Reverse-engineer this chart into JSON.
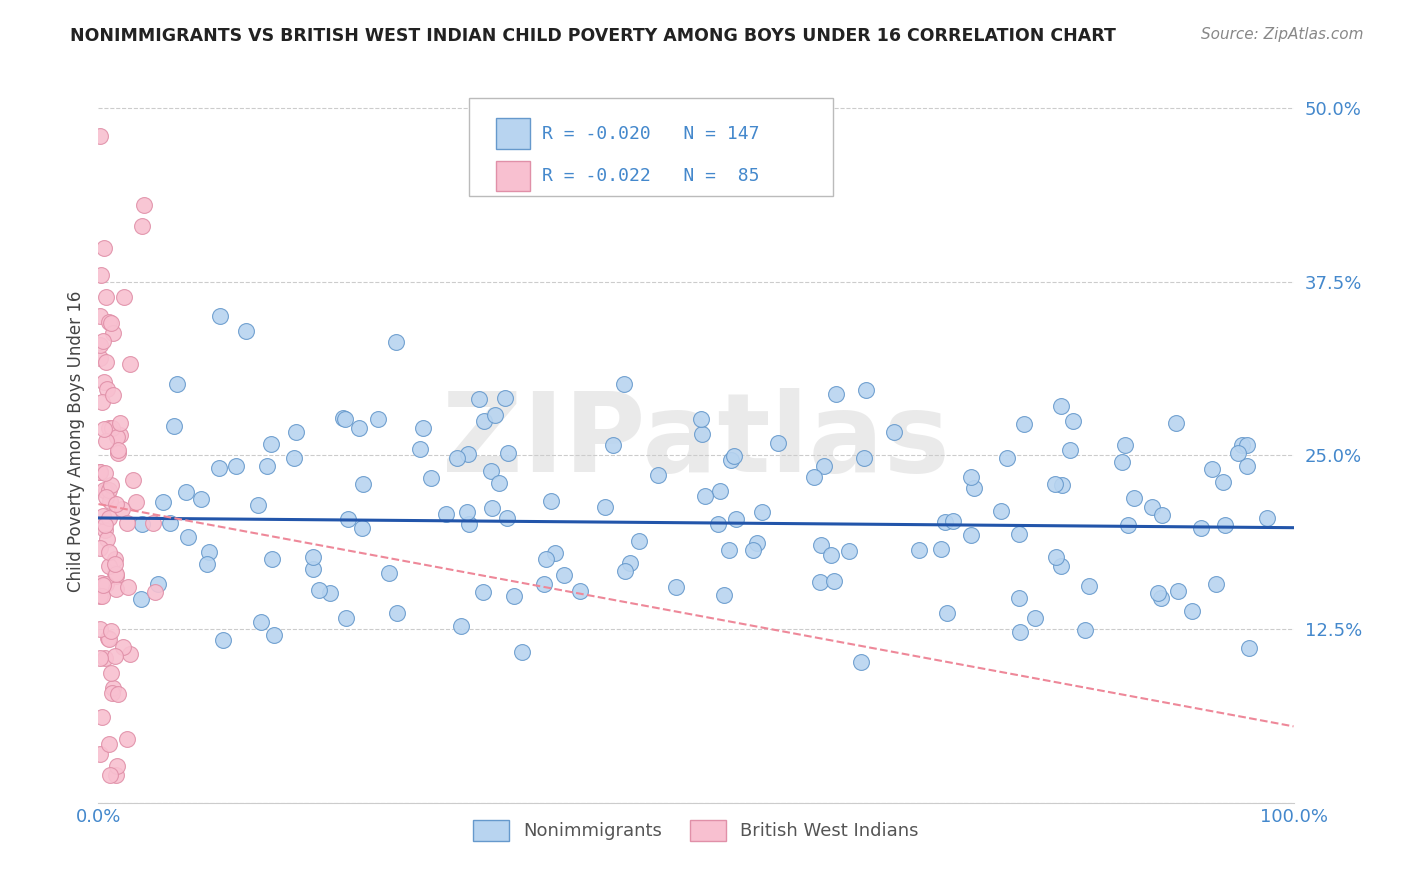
{
  "title": "NONIMMIGRANTS VS BRITISH WEST INDIAN CHILD POVERTY AMONG BOYS UNDER 16 CORRELATION CHART",
  "source": "Source: ZipAtlas.com",
  "ylabel": "Child Poverty Among Boys Under 16",
  "xlim": [
    0,
    1.0
  ],
  "ylim": [
    0.0,
    0.52
  ],
  "yticks": [
    0.0,
    0.125,
    0.25,
    0.375,
    0.5
  ],
  "ytick_labels": [
    "",
    "12.5%",
    "25.0%",
    "37.5%",
    "50.0%"
  ],
  "xticks": [
    0.0,
    0.25,
    0.5,
    0.75,
    1.0
  ],
  "xtick_labels": [
    "0.0%",
    "",
    "",
    "",
    "100.0%"
  ],
  "series1_color": "#b8d4f0",
  "series1_edge": "#6699cc",
  "series2_color": "#f8c0d0",
  "series2_edge": "#e090a8",
  "trendline1_color": "#2255aa",
  "trendline2_color": "#ee8899",
  "legend_label1": "Nonimmigrants",
  "legend_label2": "British West Indians",
  "watermark": "ZIPatlas",
  "background_color": "#ffffff",
  "grid_color": "#cccccc",
  "title_color": "#222222",
  "ylabel_color": "#444444",
  "tick_color": "#4488cc",
  "seed": 42,
  "n1": 147,
  "n2": 85,
  "trendline1_y0": 0.205,
  "trendline1_y1": 0.198,
  "trendline2_y0": 0.215,
  "trendline2_y1": 0.055
}
